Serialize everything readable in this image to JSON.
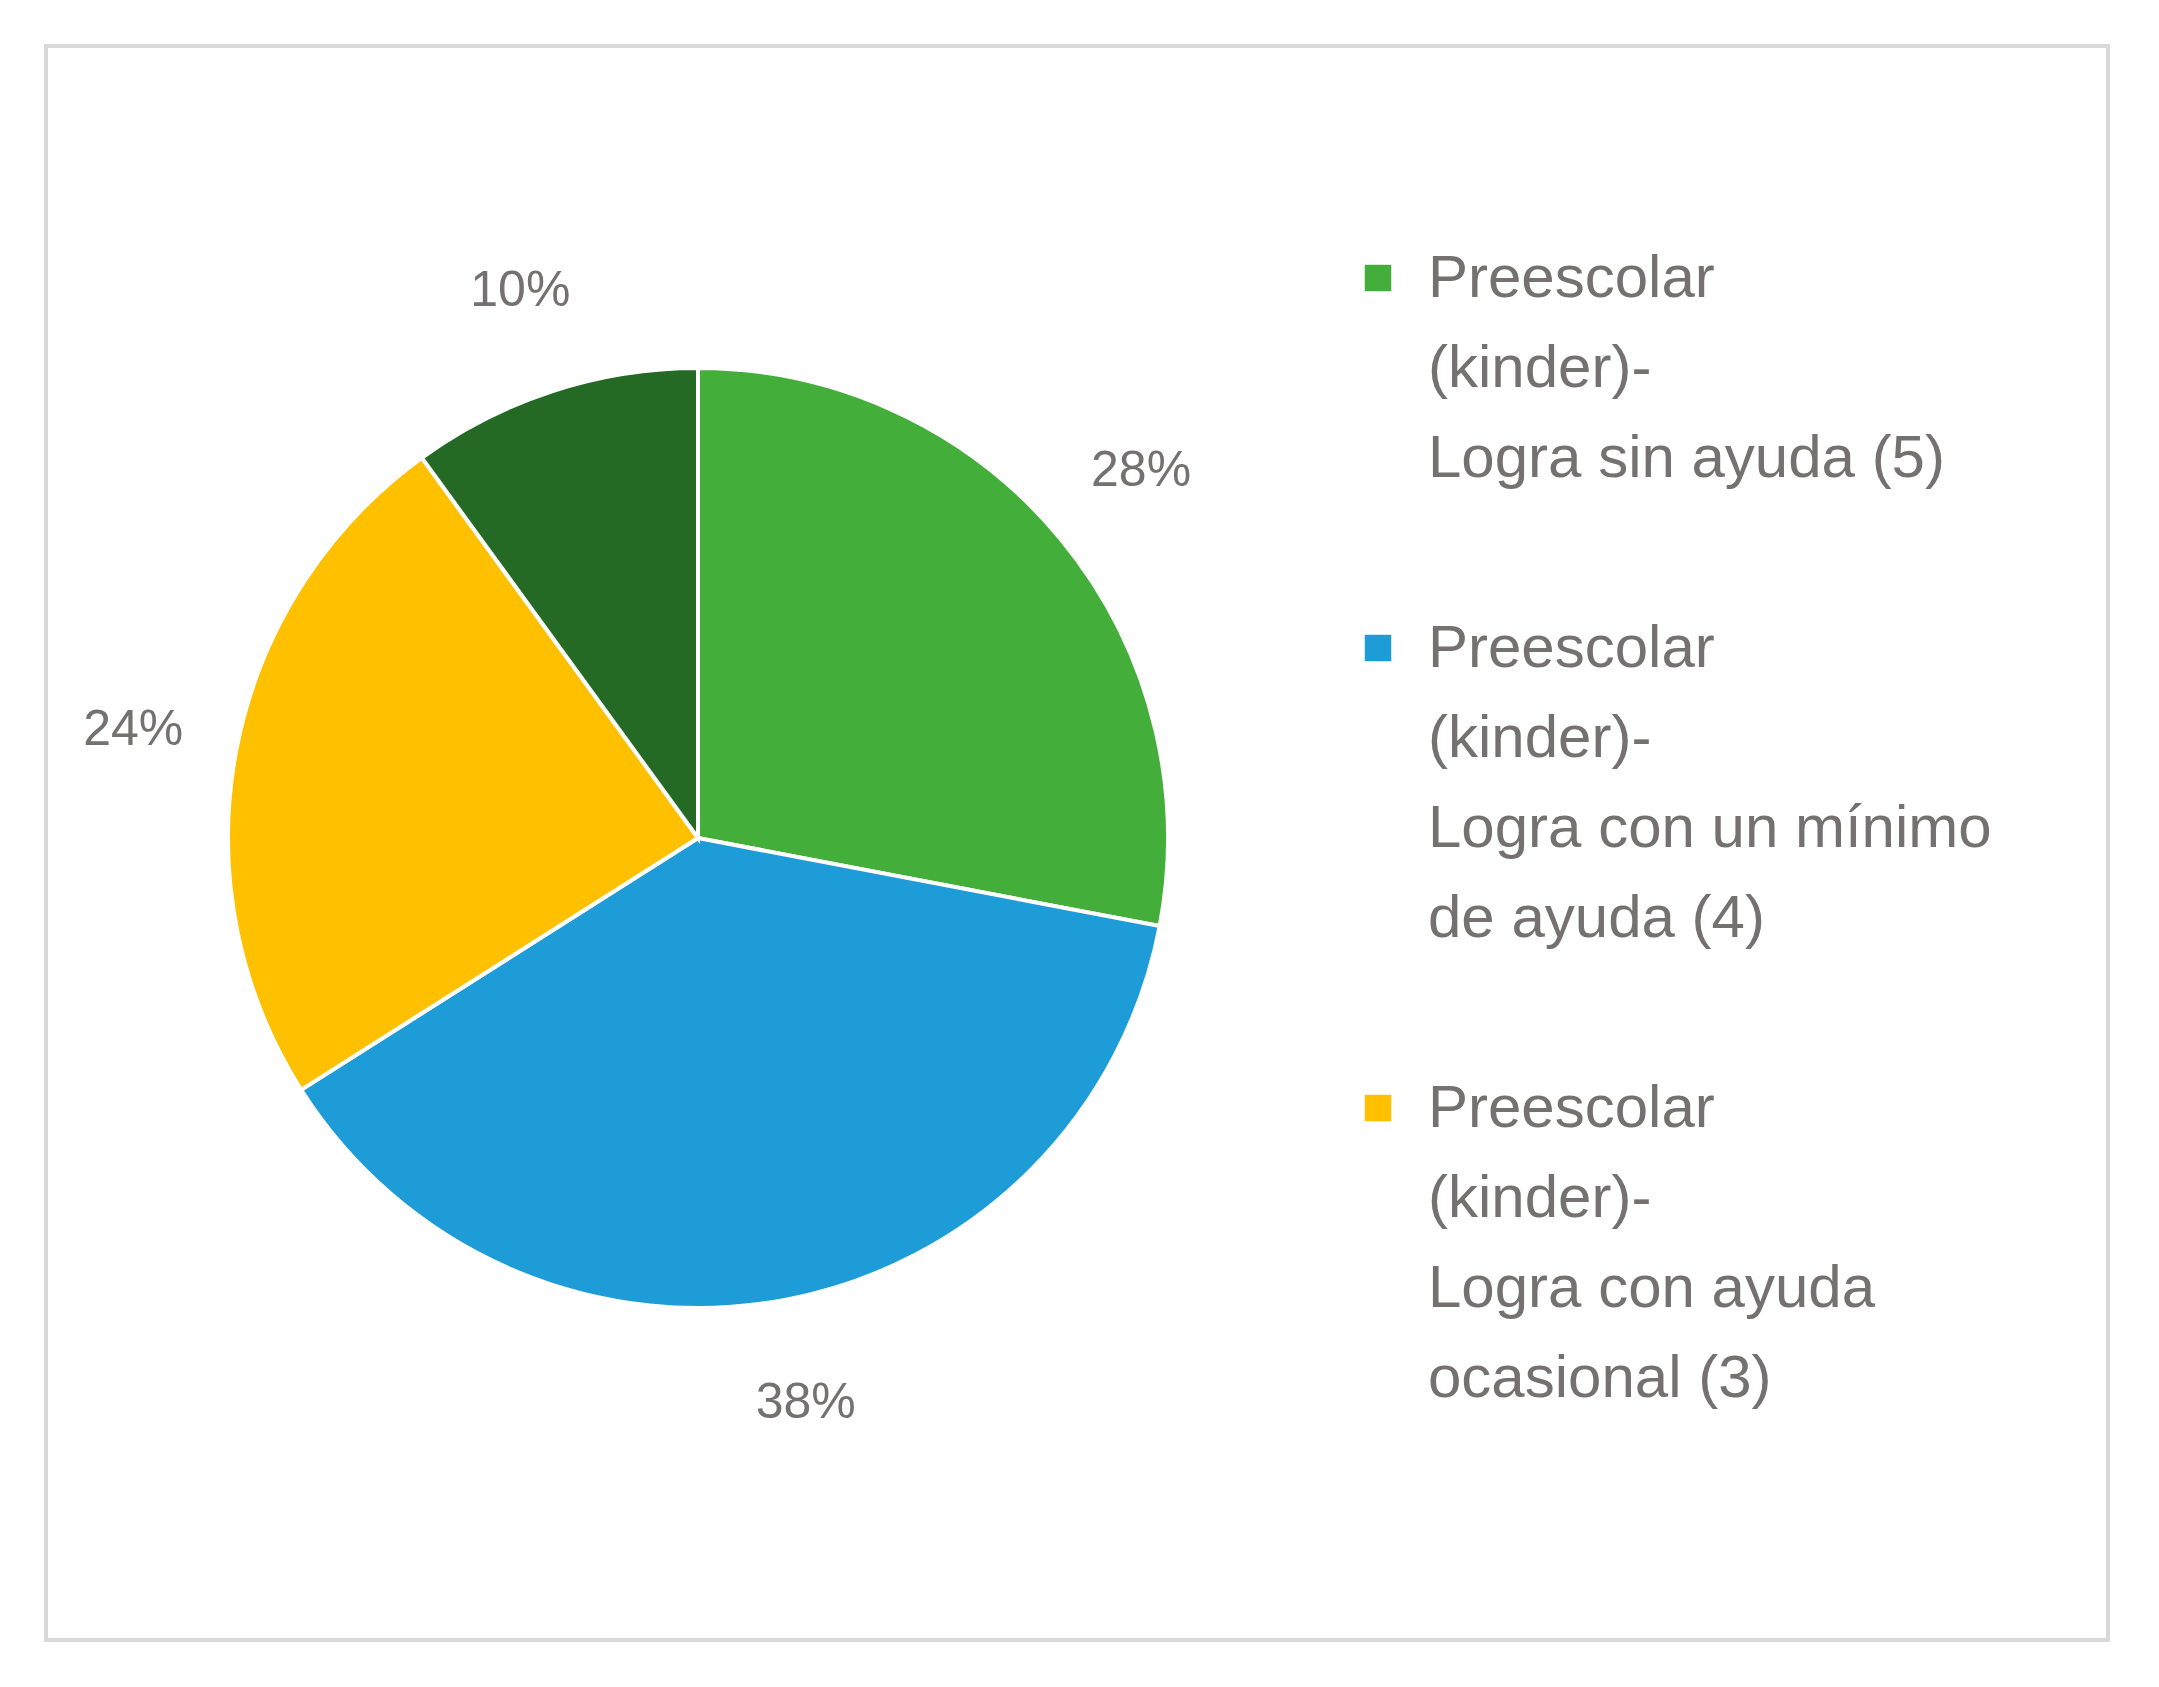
{
  "chart_data": {
    "type": "pie",
    "categories": [
      "Preescolar (kinder)-Logra sin ayuda (5)",
      "Preescolar (kinder)-Logra con un mínimo de ayuda (4)",
      "Preescolar (kinder)-Logra con ayuda ocasional (3)",
      null
    ],
    "values": [
      28,
      38,
      24,
      10
    ],
    "colors": [
      "#44ae3b",
      "#1e9cd7",
      "#ffc000",
      "#246a24"
    ],
    "value_labels": [
      "28%",
      "38%",
      "24%",
      "10%"
    ],
    "legend": "right"
  }
}
